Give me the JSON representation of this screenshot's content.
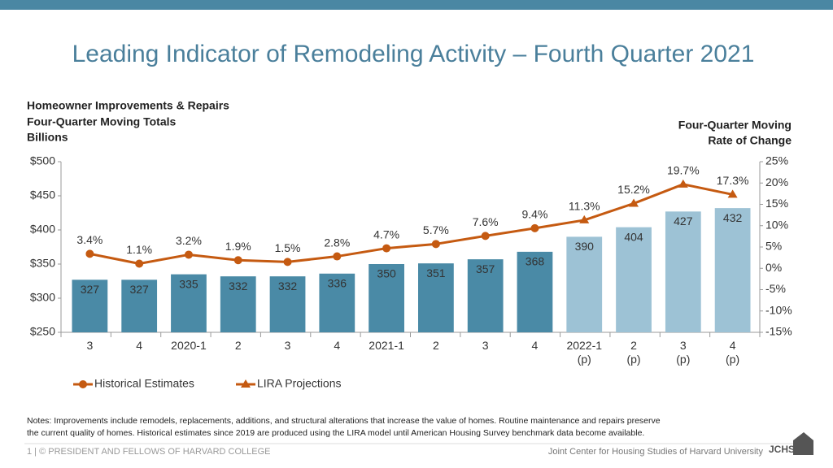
{
  "chart_data": {
    "type": "bar",
    "title": "Leading Indicator of Remodeling Activity – Fourth Quarter 2021",
    "ylabel": [
      "Homeowner Improvements & Repairs",
      "Four-Quarter Moving Totals",
      "Billions"
    ],
    "y2label": [
      "Four-Quarter Moving",
      "Rate of Change"
    ],
    "categories": [
      "3",
      "4",
      "2020-1",
      "2",
      "3",
      "4",
      "2021-1",
      "2",
      "3",
      "4",
      "2022-1\n(p)",
      "2\n(p)",
      "3\n(p)",
      "4\n(p)"
    ],
    "values": [
      327,
      327,
      335,
      332,
      332,
      336,
      350,
      351,
      357,
      368,
      390,
      404,
      427,
      432
    ],
    "colors": [
      "#4a8aa6",
      "#4a8aa6",
      "#4a8aa6",
      "#4a8aa6",
      "#4a8aa6",
      "#4a8aa6",
      "#4a8aa6",
      "#4a8aa6",
      "#4a8aa6",
      "#4a8aa6",
      "#9dc2d5",
      "#9dc2d5",
      "#9dc2d5",
      "#9dc2d5"
    ],
    "ylim": [
      250,
      500
    ],
    "yticks": [
      {
        "value": 250,
        "label": "$250"
      },
      {
        "value": 300,
        "label": "$300"
      },
      {
        "value": 350,
        "label": "$350"
      },
      {
        "value": 400,
        "label": "$400"
      },
      {
        "value": 450,
        "label": "$450"
      },
      {
        "value": 500,
        "label": "$500"
      }
    ],
    "y2lim": [
      -15,
      25
    ],
    "y2ticks": [
      {
        "value": -15,
        "label": "-15%"
      },
      {
        "value": -10,
        "label": "-10%"
      },
      {
        "value": -5,
        "label": "-5%"
      },
      {
        "value": 0,
        "label": "0%"
      },
      {
        "value": 5,
        "label": "5%"
      },
      {
        "value": 10,
        "label": "10%"
      },
      {
        "value": 15,
        "label": "15%"
      },
      {
        "value": 20,
        "label": "20%"
      },
      {
        "value": 25,
        "label": "25%"
      }
    ],
    "series": [
      {
        "name": "Historical Estimates",
        "type": "line",
        "axis": "y2",
        "marker": "circle",
        "color": "#c55a11",
        "values": [
          3.4,
          1.1,
          3.2,
          1.9,
          1.5,
          2.8,
          4.7,
          5.7,
          7.6,
          9.4,
          null,
          null,
          null,
          null
        ],
        "value_labels": [
          "3.4%",
          "1.1%",
          "3.2%",
          "1.9%",
          "1.5%",
          "2.8%",
          "4.7%",
          "5.7%",
          "7.6%",
          "9.4%",
          null,
          null,
          null,
          null
        ]
      },
      {
        "name": "LIRA Projections",
        "type": "line",
        "axis": "y2",
        "marker": "triangle",
        "color": "#c55a11",
        "values": [
          null,
          null,
          null,
          null,
          null,
          null,
          null,
          null,
          null,
          9.4,
          11.3,
          15.2,
          19.7,
          17.3
        ],
        "value_labels": [
          null,
          null,
          null,
          null,
          null,
          null,
          null,
          null,
          null,
          null,
          "11.3%",
          "15.2%",
          "19.7%",
          "17.3%"
        ]
      }
    ],
    "notes": [
      "Notes: Improvements include remodels, replacements, additions, and structural alterations that increase the value of homes. Routine maintenance and repairs preserve",
      "the current quality of homes. Historical estimates since 2019 are produced using the LIRA model until American Housing Survey benchmark data become available."
    ]
  },
  "footer": {
    "left": "1 | © PRESIDENT AND FELLOWS OF HARVARD COLLEGE",
    "right": "Joint Center for Housing Studies of Harvard University",
    "logo": "JCHS"
  }
}
